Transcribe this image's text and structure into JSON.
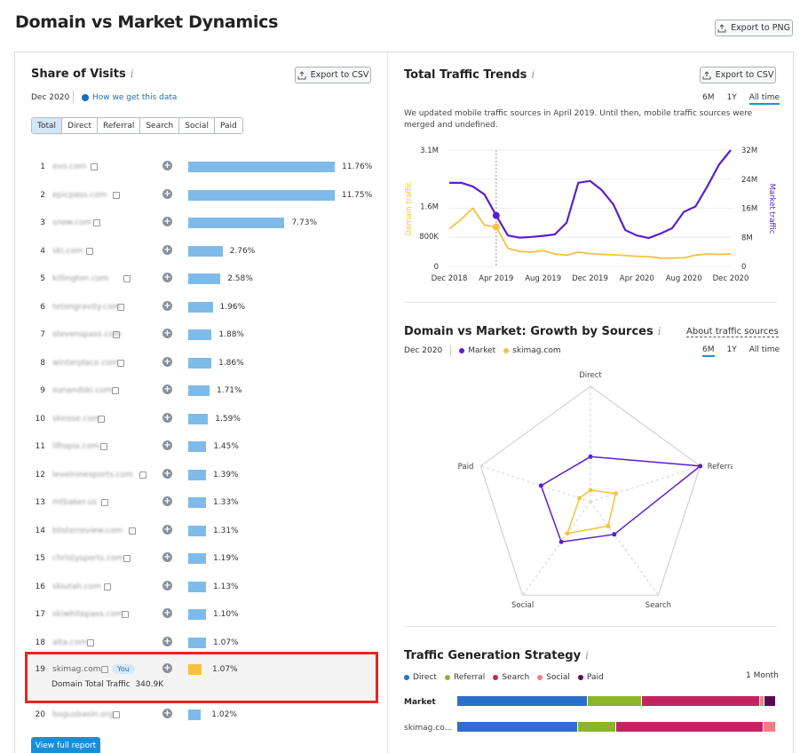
{
  "page_title": "Domain vs Market Dynamics",
  "export_png_label": "Export to PNG",
  "share": {
    "title": "Share of Visits",
    "info": "i",
    "export_csv": "Export to CSV",
    "date": "Dec 2020",
    "how_link": "How we get this data",
    "tabs": [
      "Total",
      "Direct",
      "Referral",
      "Search",
      "Social",
      "Paid"
    ],
    "active_tab": "Total",
    "rows": [
      {
        "rank": "1",
        "domain": "evo.com",
        "value": 11.76,
        "pct": "11.76%"
      },
      {
        "rank": "2",
        "domain": "epicpass.com",
        "value": 11.75,
        "pct": "11.75%"
      },
      {
        "rank": "3",
        "domain": "snow.com",
        "value": 7.73,
        "pct": "7.73%"
      },
      {
        "rank": "4",
        "domain": "ski.com",
        "value": 2.76,
        "pct": "2.76%"
      },
      {
        "rank": "5",
        "domain": "killington.com",
        "value": 2.58,
        "pct": "2.58%"
      },
      {
        "rank": "6",
        "domain": "tetongravity.com",
        "value": 1.96,
        "pct": "1.96%"
      },
      {
        "rank": "7",
        "domain": "stevenspass.com",
        "value": 1.88,
        "pct": "1.88%"
      },
      {
        "rank": "8",
        "domain": "winterplace.com",
        "value": 1.86,
        "pct": "1.86%"
      },
      {
        "rank": "9",
        "domain": "sunandski.com",
        "value": 1.71,
        "pct": "1.71%"
      },
      {
        "rank": "10",
        "domain": "skirose.com",
        "value": 1.59,
        "pct": "1.59%"
      },
      {
        "rank": "11",
        "domain": "liftopia.com",
        "value": 1.45,
        "pct": "1.45%"
      },
      {
        "rank": "12",
        "domain": "levelninesports.com",
        "value": 1.39,
        "pct": "1.39%"
      },
      {
        "rank": "13",
        "domain": "mtbaker.us",
        "value": 1.33,
        "pct": "1.33%"
      },
      {
        "rank": "14",
        "domain": "blisterreview.com",
        "value": 1.31,
        "pct": "1.31%"
      },
      {
        "rank": "15",
        "domain": "christysports.com",
        "value": 1.19,
        "pct": "1.19%"
      },
      {
        "rank": "16",
        "domain": "skiutah.com",
        "value": 1.13,
        "pct": "1.13%"
      },
      {
        "rank": "17",
        "domain": "skiwhitepass.com",
        "value": 1.1,
        "pct": "1.10%"
      },
      {
        "rank": "18",
        "domain": "alta.com",
        "value": 1.07,
        "pct": "1.07%"
      }
    ],
    "highlight": {
      "rank": "19",
      "domain": "skimag.com",
      "badge": "You",
      "value": 1.07,
      "pct": "1.07%",
      "sub": "Domain Total Traffic  340.9K"
    },
    "last_row": {
      "rank": "20",
      "domain": "bogusbasin.org",
      "value": 1.02,
      "pct": "1.02%"
    },
    "view_full": "View full report"
  },
  "trends": {
    "title": "Total Traffic Trends",
    "export_csv": "Export to CSV",
    "time_tabs": [
      "6M",
      "1Y",
      "All time"
    ],
    "active": "All time",
    "note": "We updated mobile traffic sources in April 2019. Until then, mobile traffic sources were merged and undefined.",
    "left_axis_label": "Domain traffic",
    "right_axis_label": "Market traffic",
    "left_ticks": [
      "3.1M",
      "1.6M",
      "800K",
      "0"
    ],
    "right_ticks": [
      "32M",
      "24M",
      "16M",
      "8M",
      "0"
    ],
    "x_ticks": [
      "Dec 2018",
      "Apr 2019",
      "Aug 2019",
      "Dec 2019",
      "Apr 2020",
      "Aug 2020",
      "Dec 2020"
    ]
  },
  "growth": {
    "title": "Domain vs Market: Growth by Sources",
    "about_link": "About traffic sources",
    "date": "Dec 2020",
    "legend_market": "Market",
    "legend_domain": "skimag.com",
    "time_tabs": [
      "6M",
      "1Y",
      "All time"
    ],
    "active": "6M",
    "axes": [
      "Direct",
      "Referral",
      "Search",
      "Social",
      "Paid"
    ]
  },
  "strategy": {
    "title": "Traffic Generation Strategy",
    "period": "1 Month",
    "legend": [
      "Direct",
      "Referral",
      "Search",
      "Social",
      "Paid"
    ],
    "rows": [
      {
        "label": "Market",
        "shares": [
          41,
          17,
          37,
          1.5,
          3.5
        ]
      },
      {
        "label": "skimag.co...",
        "shares": [
          38,
          12,
          46,
          4,
          0
        ]
      }
    ]
  },
  "colors": {
    "market": "#5a1fd1",
    "domain": "#f6c13e",
    "bar": "#7ebbea",
    "highlight_bar": "#f6c13e",
    "highlight_border": "#e5261f",
    "direct": "#2e6fcb",
    "referral": "#8bb52a",
    "search": "#c42462",
    "social": "#f47b83",
    "paid": "#5a0a4f"
  },
  "chart_data": [
    {
      "type": "line",
      "title": "Total Traffic Trends",
      "x": [
        "Dec 2018",
        "Jan 2019",
        "Feb 2019",
        "Mar 2019",
        "Apr 2019",
        "May 2019",
        "Jun 2019",
        "Jul 2019",
        "Aug 2019",
        "Sep 2019",
        "Oct 2019",
        "Nov 2019",
        "Dec 2019",
        "Jan 2020",
        "Feb 2020",
        "Mar 2020",
        "Apr 2020",
        "May 2020",
        "Jun 2020",
        "Jul 2020",
        "Aug 2020",
        "Sep 2020",
        "Oct 2020",
        "Nov 2020",
        "Dec 2020"
      ],
      "series": [
        {
          "name": "Domain traffic",
          "axis": "left",
          "values": [
            1000,
            1250,
            1550,
            1100,
            1050,
            480,
            400,
            380,
            420,
            330,
            300,
            380,
            340,
            320,
            310,
            290,
            270,
            260,
            220,
            220,
            230,
            300,
            330,
            320,
            330
          ]
        },
        {
          "name": "Market traffic",
          "axis": "right",
          "values": [
            23000,
            23000,
            22000,
            19800,
            14000,
            8500,
            7900,
            8100,
            8400,
            8800,
            12000,
            23000,
            23500,
            21000,
            17000,
            10000,
            8500,
            7800,
            9000,
            10500,
            15000,
            16500,
            22000,
            28000,
            32000
          ]
        }
      ],
      "ylim_left": [
        0,
        3100
      ],
      "ylim_right": [
        0,
        32000
      ]
    },
    {
      "type": "radar",
      "title": "Domain vs Market: Growth by Sources",
      "axes": [
        "Direct",
        "Referral",
        "Search",
        "Social",
        "Paid"
      ],
      "series": [
        {
          "name": "Market",
          "values": [
            0.39,
            1.0,
            0.35,
            0.43,
            0.45
          ]
        },
        {
          "name": "skimag.com",
          "values": [
            0.1,
            0.23,
            0.26,
            0.34,
            0.1
          ]
        }
      ]
    }
  ]
}
